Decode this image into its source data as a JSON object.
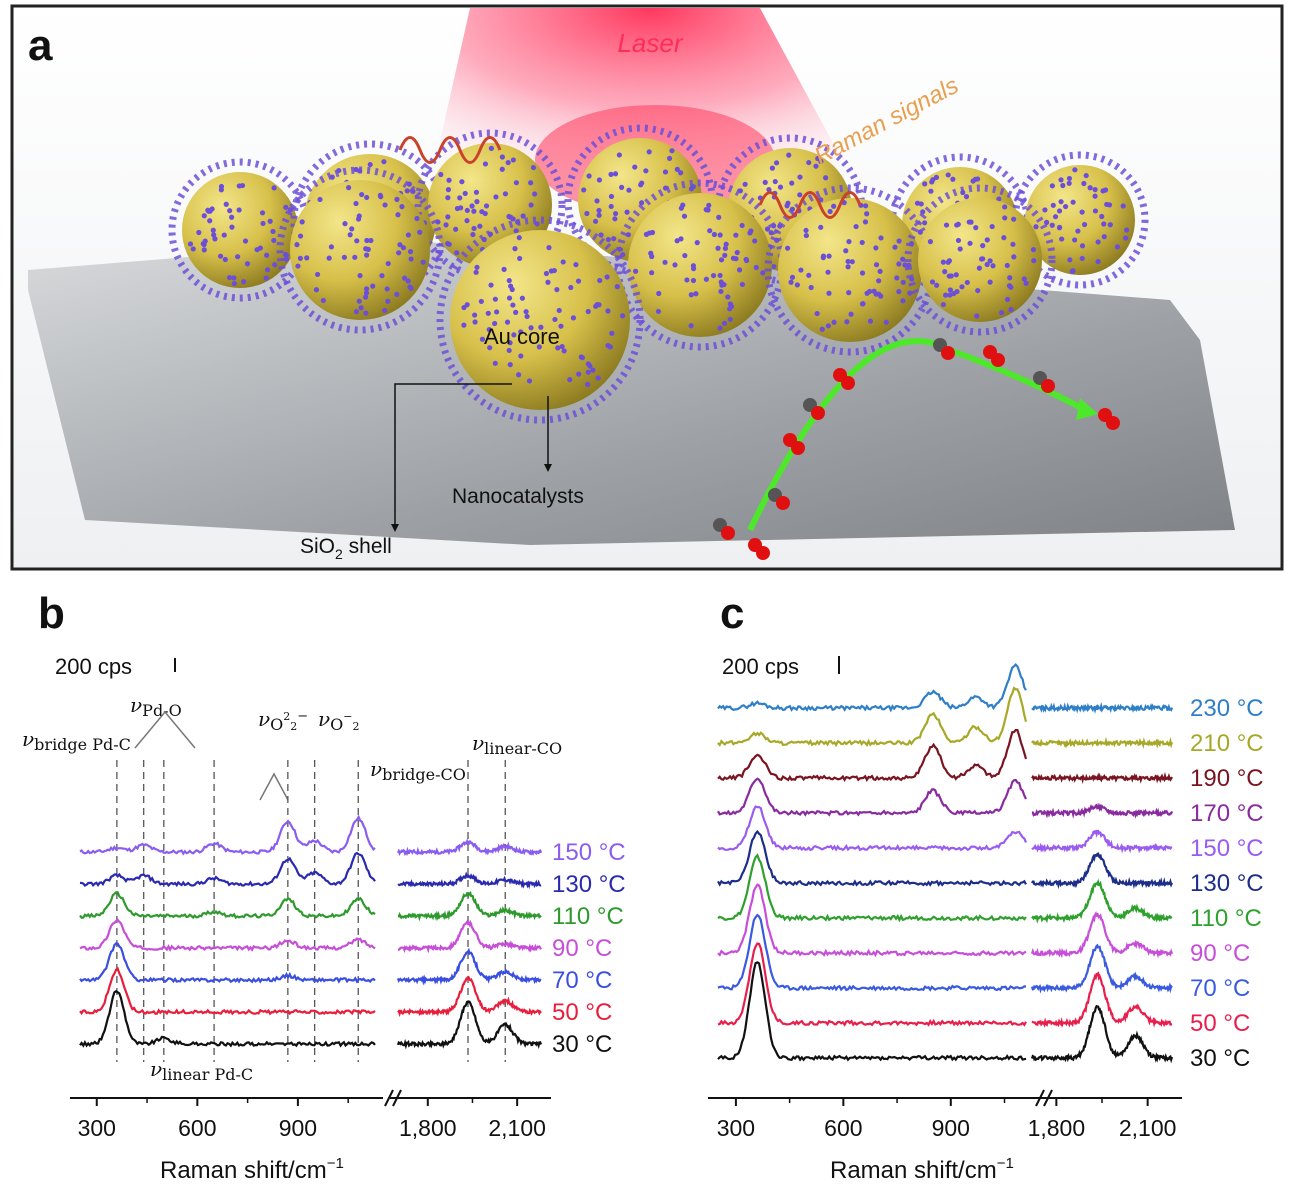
{
  "panel_a": {
    "letter": "a",
    "laser_label": "Laser",
    "raman_label": "Raman signals",
    "core_label": "Au core",
    "catalyst_label": "Nanocatalysts",
    "shell_label_main": "SiO",
    "shell_label_sub": "2",
    "shell_label_tail": " shell",
    "colors": {
      "gold": "#d9c24a",
      "dots": "#6c4fd8",
      "laser": "#ff2d55",
      "arrow": "#4ee82a",
      "substrate": "#b9bcbf",
      "oxygen": "#e01010",
      "carbon": "#555555"
    }
  },
  "panel_b": {
    "letter": "b",
    "scale_label": "200 cps",
    "xlabel": "Raman shift/cm",
    "xlabel_sup": "−1",
    "ticks": [
      "300",
      "600",
      "900",
      "1,800",
      "2,100"
    ],
    "annotations": {
      "bridge_pdc": "bridge Pd-C",
      "pdo": "Pd-O",
      "o22": "O",
      "o2": "O",
      "bridge_co": "bridge-CO",
      "linear_co": "linear-CO",
      "linear_pdc": "linear Pd-C",
      "nu": "ν"
    }
  },
  "panel_c": {
    "letter": "c",
    "scale_label": "200 cps",
    "xlabel": "Raman shift/cm",
    "xlabel_sup": "−1",
    "ticks": [
      "300",
      "600",
      "900",
      "1,800",
      "2,100"
    ]
  },
  "chart_data": [
    {
      "type": "line",
      "panel": "b",
      "xlabel": "Raman shift/cm−1",
      "x_ranges": [
        [
          250,
          1130
        ],
        [
          1700,
          2180
        ]
      ],
      "axis_break": true,
      "y_scale_bar": "200 cps",
      "series": [
        {
          "name": "150 °C",
          "color": "#8a5cf0",
          "peaks": [
            {
              "x": 360,
              "h": 0.15
            },
            {
              "x": 440,
              "h": 0.25
            },
            {
              "x": 650,
              "h": 0.3
            },
            {
              "x": 870,
              "h": 1.1
            },
            {
              "x": 950,
              "h": 0.4
            },
            {
              "x": 1080,
              "h": 1.2
            },
            {
              "x": 1935,
              "h": 0.35
            },
            {
              "x": 2060,
              "h": 0.2
            }
          ]
        },
        {
          "name": "130 °C",
          "color": "#2a2ab0",
          "peaks": [
            {
              "x": 360,
              "h": 0.3
            },
            {
              "x": 440,
              "h": 0.3
            },
            {
              "x": 650,
              "h": 0.2
            },
            {
              "x": 870,
              "h": 0.9
            },
            {
              "x": 950,
              "h": 0.4
            },
            {
              "x": 1080,
              "h": 1.1
            },
            {
              "x": 1935,
              "h": 0.3
            },
            {
              "x": 2060,
              "h": 0.15
            }
          ]
        },
        {
          "name": "110 °C",
          "color": "#2e9a2e",
          "peaks": [
            {
              "x": 360,
              "h": 0.8
            },
            {
              "x": 650,
              "h": 0.15
            },
            {
              "x": 870,
              "h": 0.6
            },
            {
              "x": 1080,
              "h": 0.6
            },
            {
              "x": 1935,
              "h": 0.8
            },
            {
              "x": 2060,
              "h": 0.2
            }
          ]
        },
        {
          "name": "90 °C",
          "color": "#c64ed8",
          "peaks": [
            {
              "x": 360,
              "h": 1.0
            },
            {
              "x": 870,
              "h": 0.25
            },
            {
              "x": 1080,
              "h": 0.3
            },
            {
              "x": 1935,
              "h": 0.9
            },
            {
              "x": 2060,
              "h": 0.15
            }
          ]
        },
        {
          "name": "70 °C",
          "color": "#3a4ee0",
          "peaks": [
            {
              "x": 360,
              "h": 1.3
            },
            {
              "x": 870,
              "h": 0.15
            },
            {
              "x": 1935,
              "h": 1.0
            },
            {
              "x": 2060,
              "h": 0.3
            }
          ]
        },
        {
          "name": "50 °C",
          "color": "#e81e3c",
          "peaks": [
            {
              "x": 360,
              "h": 1.5
            },
            {
              "x": 1935,
              "h": 1.2
            },
            {
              "x": 2060,
              "h": 0.4
            }
          ]
        },
        {
          "name": "30 °C",
          "color": "#111111",
          "peaks": [
            {
              "x": 360,
              "h": 1.9
            },
            {
              "x": 500,
              "h": 0.2
            },
            {
              "x": 1935,
              "h": 1.5
            },
            {
              "x": 2060,
              "h": 0.7
            }
          ]
        }
      ],
      "reference_lines": [
        360,
        440,
        500,
        650,
        870,
        950,
        1080,
        1935,
        2060
      ]
    },
    {
      "type": "line",
      "panel": "c",
      "xlabel": "Raman shift/cm−1",
      "x_ranges": [
        [
          250,
          1110
        ],
        [
          1720,
          2180
        ]
      ],
      "axis_break": true,
      "y_scale_bar": "200 cps",
      "series": [
        {
          "name": "230 °C",
          "color": "#2f7fc8",
          "peaks": [
            {
              "x": 360,
              "h": 0.15
            },
            {
              "x": 850,
              "h": 0.5
            },
            {
              "x": 970,
              "h": 0.35
            },
            {
              "x": 1080,
              "h": 1.3
            }
          ]
        },
        {
          "name": "210 °C",
          "color": "#a8a828",
          "peaks": [
            {
              "x": 360,
              "h": 0.3
            },
            {
              "x": 850,
              "h": 0.9
            },
            {
              "x": 970,
              "h": 0.5
            },
            {
              "x": 1080,
              "h": 1.7
            }
          ]
        },
        {
          "name": "190 °C",
          "color": "#7a1420",
          "peaks": [
            {
              "x": 360,
              "h": 0.7
            },
            {
              "x": 850,
              "h": 1.0
            },
            {
              "x": 970,
              "h": 0.4
            },
            {
              "x": 1080,
              "h": 1.5
            }
          ]
        },
        {
          "name": "170 °C",
          "color": "#8a2aa0",
          "peaks": [
            {
              "x": 360,
              "h": 1.1
            },
            {
              "x": 850,
              "h": 0.7
            },
            {
              "x": 1080,
              "h": 1.0
            },
            {
              "x": 1935,
              "h": 0.2
            }
          ]
        },
        {
          "name": "150 °C",
          "color": "#9a5cf0",
          "peaks": [
            {
              "x": 360,
              "h": 1.3
            },
            {
              "x": 1080,
              "h": 0.5
            },
            {
              "x": 1935,
              "h": 0.5
            }
          ]
        },
        {
          "name": "130 °C",
          "color": "#1c2e8a",
          "peaks": [
            {
              "x": 360,
              "h": 1.6
            },
            {
              "x": 1935,
              "h": 0.9
            }
          ]
        },
        {
          "name": "110 °C",
          "color": "#2ea02e",
          "peaks": [
            {
              "x": 360,
              "h": 1.9
            },
            {
              "x": 1935,
              "h": 1.1
            },
            {
              "x": 2060,
              "h": 0.3
            }
          ]
        },
        {
          "name": "90 °C",
          "color": "#c64ed8",
          "peaks": [
            {
              "x": 360,
              "h": 2.1
            },
            {
              "x": 1935,
              "h": 1.2
            },
            {
              "x": 2060,
              "h": 0.3
            }
          ]
        },
        {
          "name": "70 °C",
          "color": "#3a5ae0",
          "peaks": [
            {
              "x": 360,
              "h": 2.3
            },
            {
              "x": 1935,
              "h": 1.3
            },
            {
              "x": 2060,
              "h": 0.35
            }
          ]
        },
        {
          "name": "50 °C",
          "color": "#e81e4c",
          "peaks": [
            {
              "x": 360,
              "h": 2.5
            },
            {
              "x": 1935,
              "h": 1.5
            },
            {
              "x": 2060,
              "h": 0.5
            }
          ]
        },
        {
          "name": "30 °C",
          "color": "#111111",
          "peaks": [
            {
              "x": 360,
              "h": 3.0
            },
            {
              "x": 1935,
              "h": 1.6
            },
            {
              "x": 2060,
              "h": 0.7
            }
          ]
        }
      ]
    }
  ]
}
